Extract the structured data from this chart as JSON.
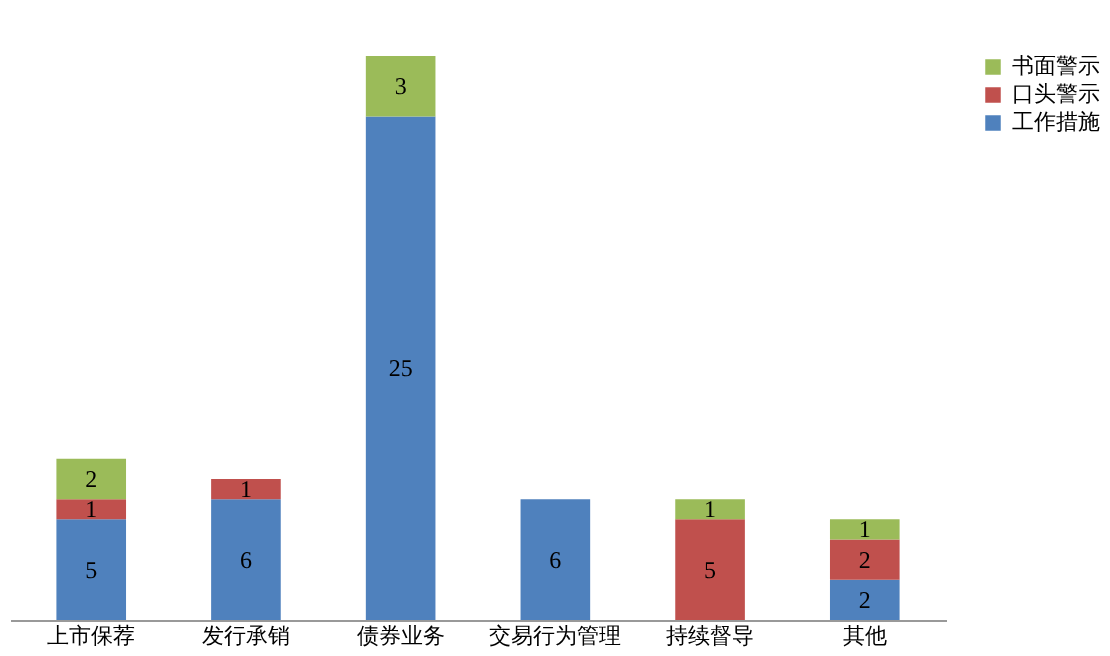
{
  "chart_data": {
    "type": "bar",
    "stacked": true,
    "categories": [
      "上市保荐",
      "发行承销",
      "债券业务",
      "交易行为管理",
      "持续督导",
      "其他"
    ],
    "series": [
      {
        "name": "工作措施",
        "color": "#4f81bd",
        "values": [
          5,
          6,
          25,
          6,
          null,
          2
        ]
      },
      {
        "name": "口头警示",
        "color": "#c0504d",
        "values": [
          1,
          1,
          null,
          null,
          5,
          2
        ]
      },
      {
        "name": "书面警示",
        "color": "#9bbb59",
        "values": [
          2,
          null,
          3,
          null,
          1,
          1
        ]
      }
    ],
    "ylim": [
      0,
      28
    ],
    "tick_labels": "x",
    "data_labels": true,
    "legend": "right",
    "grid": false
  }
}
